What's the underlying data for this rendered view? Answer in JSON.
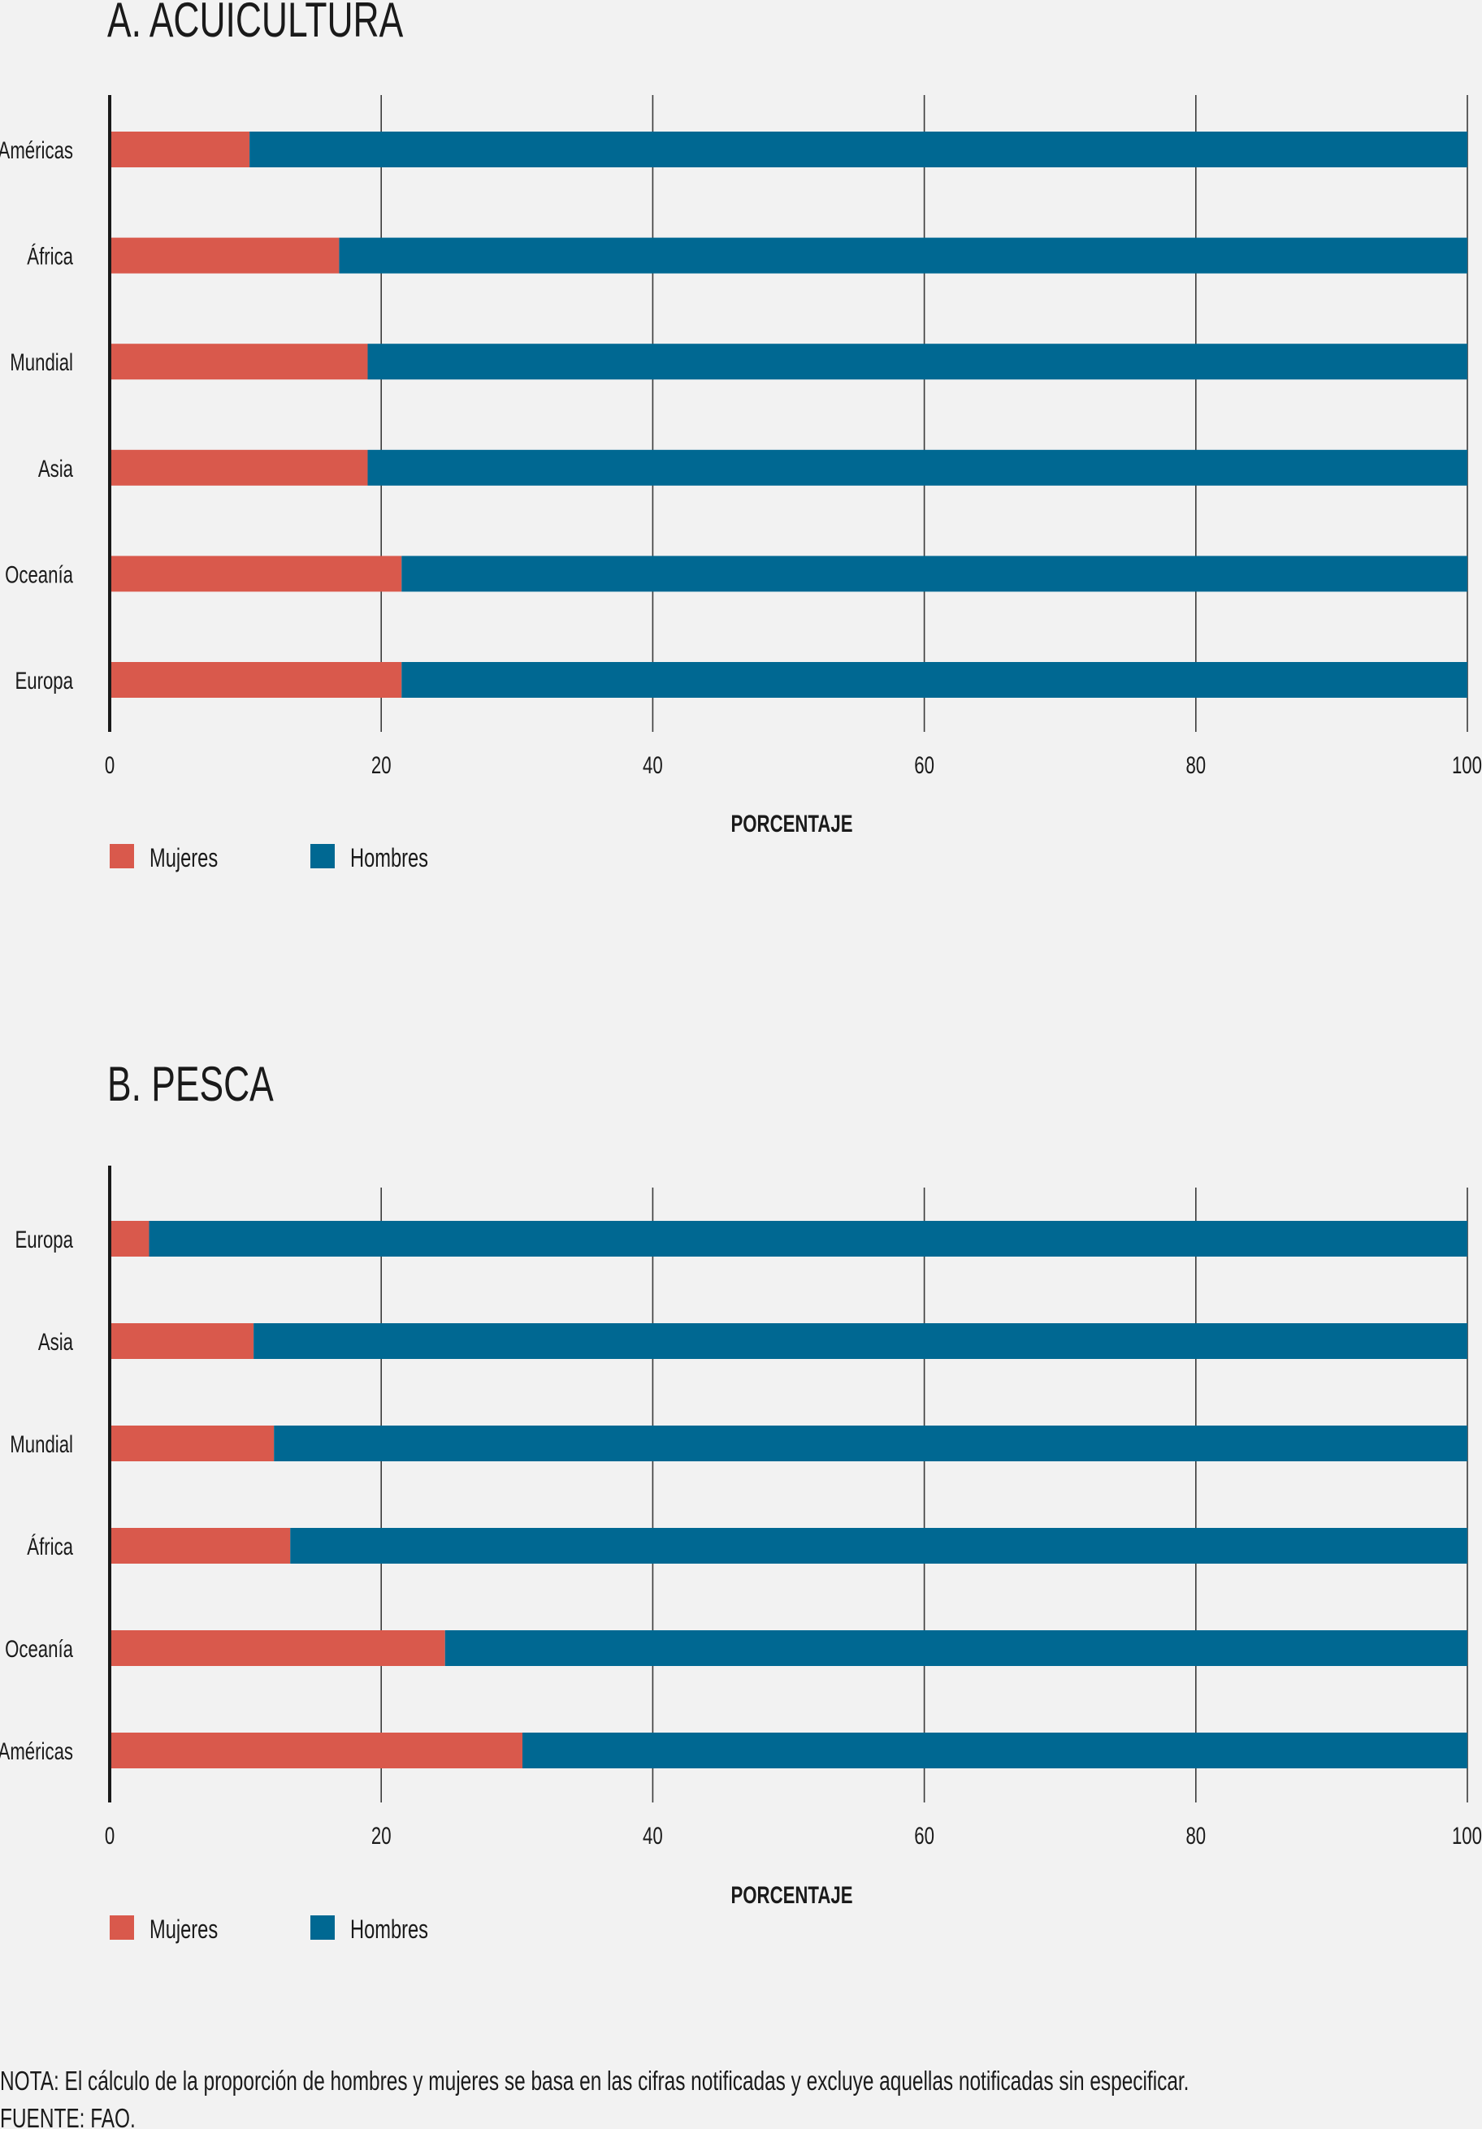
{
  "colors": {
    "background": "#f2f2f2",
    "mujeres": "#d9594c",
    "hombres": "#006892",
    "axis": "#1a1a1a",
    "grid": "#3a3a3a",
    "text": "#1a1a1a"
  },
  "chart_data": [
    {
      "type": "bar",
      "orientation": "horizontal",
      "stacked": true,
      "title": "A. ACUICULTURA",
      "categories": [
        "Américas",
        "África",
        "Mundial",
        "Asia",
        "Oceanía",
        "Europa"
      ],
      "series": [
        {
          "name": "Mujeres",
          "color": "#d9594c",
          "values": [
            10.3,
            16.9,
            19.0,
            19.0,
            21.5,
            21.5
          ]
        },
        {
          "name": "Hombres",
          "color": "#006892",
          "values": [
            89.7,
            83.1,
            81.0,
            81.0,
            78.5,
            78.5
          ]
        }
      ],
      "xlabel": "PORCENTAJE",
      "ylabel": "",
      "xlim": [
        0,
        100
      ],
      "xticks": [
        0,
        20,
        40,
        60,
        80,
        100
      ],
      "xtick_labels": [
        "0",
        "20",
        "40",
        "60",
        "80",
        "100"
      ],
      "grid": true,
      "legend": [
        "Mujeres",
        "Hombres"
      ],
      "legend_position": "bottom-left"
    },
    {
      "type": "bar",
      "orientation": "horizontal",
      "stacked": true,
      "title": "B. PESCA",
      "categories": [
        "Europa",
        "Asia",
        "Mundial",
        "África",
        "Oceanía",
        "Américas"
      ],
      "series": [
        {
          "name": "Mujeres",
          "color": "#d9594c",
          "values": [
            2.9,
            10.6,
            12.1,
            13.3,
            24.7,
            30.4
          ]
        },
        {
          "name": "Hombres",
          "color": "#006892",
          "values": [
            97.1,
            89.4,
            87.9,
            86.7,
            75.3,
            69.6
          ]
        }
      ],
      "xlabel": "PORCENTAJE",
      "ylabel": "",
      "xlim": [
        0,
        100
      ],
      "xticks": [
        0,
        20,
        40,
        60,
        80,
        100
      ],
      "xtick_labels": [
        "0",
        "20",
        "40",
        "60",
        "80",
        "100"
      ],
      "grid": true,
      "legend": [
        "Mujeres",
        "Hombres"
      ],
      "legend_position": "bottom-left"
    }
  ],
  "notes": {
    "nota": "NOTA: El cálculo de la proporción de hombres y mujeres se basa en las cifras notificadas y excluye aquellas notificadas sin especificar.",
    "fuente": "FUENTE: FAO."
  }
}
